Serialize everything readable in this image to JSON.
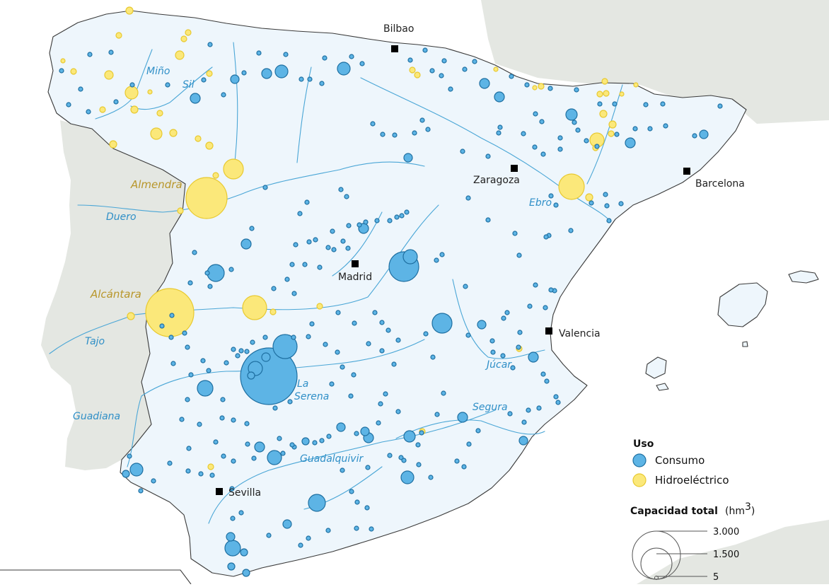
{
  "legend": {
    "uso_title": "Uso",
    "consumo_label": "Consumo",
    "hidro_label": "Hidroeléctrico",
    "capacity_title": "Capacidad total",
    "capacity_unit_base": "(hm",
    "capacity_unit_sup": "3",
    "capacity_unit_close": ")",
    "sizes": [
      "3.000",
      "1.500",
      "5"
    ]
  },
  "colors": {
    "consumo_fill": "#5db4e5",
    "consumo_stroke": "#1e6fa1",
    "hidro_fill": "#fbe87a",
    "hidro_stroke": "#e8c930",
    "land": "#eef6fc",
    "other_land": "#e4e7e2",
    "river": "#4aa6d6"
  },
  "cities": [
    {
      "name": "Bilbao"
    },
    {
      "name": "Zaragoza"
    },
    {
      "name": "Barcelona"
    },
    {
      "name": "Madrid"
    },
    {
      "name": "Valencia"
    },
    {
      "name": "Sevilla"
    }
  ],
  "rivers": [
    {
      "name": "Miño"
    },
    {
      "name": "Sil"
    },
    {
      "name": "Duero"
    },
    {
      "name": "Ebro"
    },
    {
      "name": "Tajo"
    },
    {
      "name": "Guadiana"
    },
    {
      "name": "Júcar"
    },
    {
      "name": "Segura"
    },
    {
      "name": "Guadalquivir"
    }
  ],
  "dams": [
    {
      "name": "Almendra"
    },
    {
      "name": "Alcántara"
    },
    {
      "name_line1": "La",
      "name_line2": "Serena"
    }
  ]
}
